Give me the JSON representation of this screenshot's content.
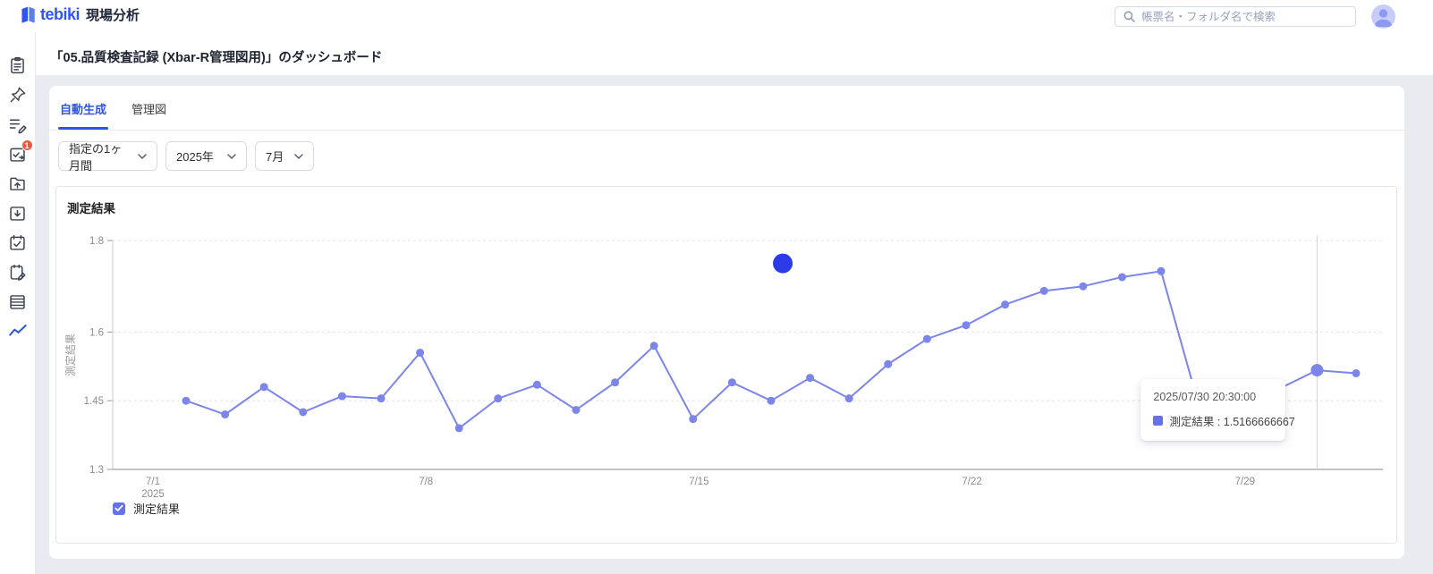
{
  "header": {
    "logo_text": "tebiki",
    "app_name": "現場分析",
    "search_placeholder": "帳票名・フォルダ名で検索"
  },
  "sidebar": {
    "badge": "1"
  },
  "page": {
    "title": "「05.品質検査記録 (Xbar-R管理図用)」のダッシュボード"
  },
  "tabs": [
    {
      "label": "自動生成",
      "active": true
    },
    {
      "label": "管理図",
      "active": false
    }
  ],
  "filters": [
    {
      "value": "指定の1ヶ月間"
    },
    {
      "value": "2025年"
    },
    {
      "value": "7月"
    }
  ],
  "chart_card": {
    "title": "測定結果"
  },
  "tooltip": {
    "datetime": "2025/07/30 20:30:00",
    "series": "測定結果",
    "value": "1.5166666667",
    "label": "測定結果 : 1.5166666667"
  },
  "legend": {
    "label": "測定結果",
    "checked": true
  },
  "colors": {
    "accent": "#2d54e8",
    "line": "#7b85ea",
    "highlight_dot": "#2b3be8",
    "badge": "#f05a3c",
    "legend_checkbox": "#6673e8",
    "tooltip_swatch": "#6673e8"
  },
  "chart_data": {
    "type": "line",
    "title": "測定結果",
    "xlabel": "",
    "ylabel": "測定結果",
    "ylim": [
      1.3,
      1.8
    ],
    "yticks": [
      1.3,
      1.45,
      1.6,
      1.8
    ],
    "grid": "dashed-horizontal",
    "legend_position": "bottom-left",
    "xticks": [
      {
        "day": 1,
        "label": "7/1",
        "sublabel": "2025"
      },
      {
        "day": 8,
        "label": "7/8"
      },
      {
        "day": 15,
        "label": "7/15"
      },
      {
        "day": 22,
        "label": "7/22"
      },
      {
        "day": 29,
        "label": "7/29"
      }
    ],
    "hover_day": 30,
    "series": [
      {
        "name": "測定結果",
        "color": "#7b85ea",
        "points": [
          {
            "date": "7/1",
            "value": 1.45
          },
          {
            "date": "7/2",
            "value": 1.42
          },
          {
            "date": "7/3",
            "value": 1.48
          },
          {
            "date": "7/4",
            "value": 1.425
          },
          {
            "date": "7/5",
            "value": 1.46
          },
          {
            "date": "7/6",
            "value": 1.455
          },
          {
            "date": "7/7",
            "value": 1.555
          },
          {
            "date": "7/8",
            "value": 1.39
          },
          {
            "date": "7/9",
            "value": 1.455
          },
          {
            "date": "7/10",
            "value": 1.485
          },
          {
            "date": "7/11",
            "value": 1.43
          },
          {
            "date": "7/12",
            "value": 1.49
          },
          {
            "date": "7/13",
            "value": 1.57
          },
          {
            "date": "7/14",
            "value": 1.41
          },
          {
            "date": "7/15",
            "value": 1.49
          },
          {
            "date": "7/16",
            "value": 1.45
          },
          {
            "date": "7/17",
            "value": 1.5
          },
          {
            "date": "7/18",
            "value": 1.455
          },
          {
            "date": "7/19",
            "value": 1.53
          },
          {
            "date": "7/20",
            "value": 1.585
          },
          {
            "date": "7/21",
            "value": 1.615
          },
          {
            "date": "7/22",
            "value": 1.66
          },
          {
            "date": "7/23",
            "value": 1.69
          },
          {
            "date": "7/24",
            "value": 1.7
          },
          {
            "date": "7/25",
            "value": 1.72
          },
          {
            "date": "7/26",
            "value": 1.733
          },
          {
            "date": "7/27",
            "value": 1.43
          },
          {
            "date": "7/28",
            "value": 1.45
          },
          {
            "date": "7/29",
            "value": 1.475
          },
          {
            "date": "7/30",
            "value": 1.5166666667
          },
          {
            "date": "7/31",
            "value": 1.51
          }
        ]
      }
    ],
    "outlier_dot": {
      "x_day": 16.3,
      "value": 1.75,
      "color": "#2b3be8"
    }
  }
}
